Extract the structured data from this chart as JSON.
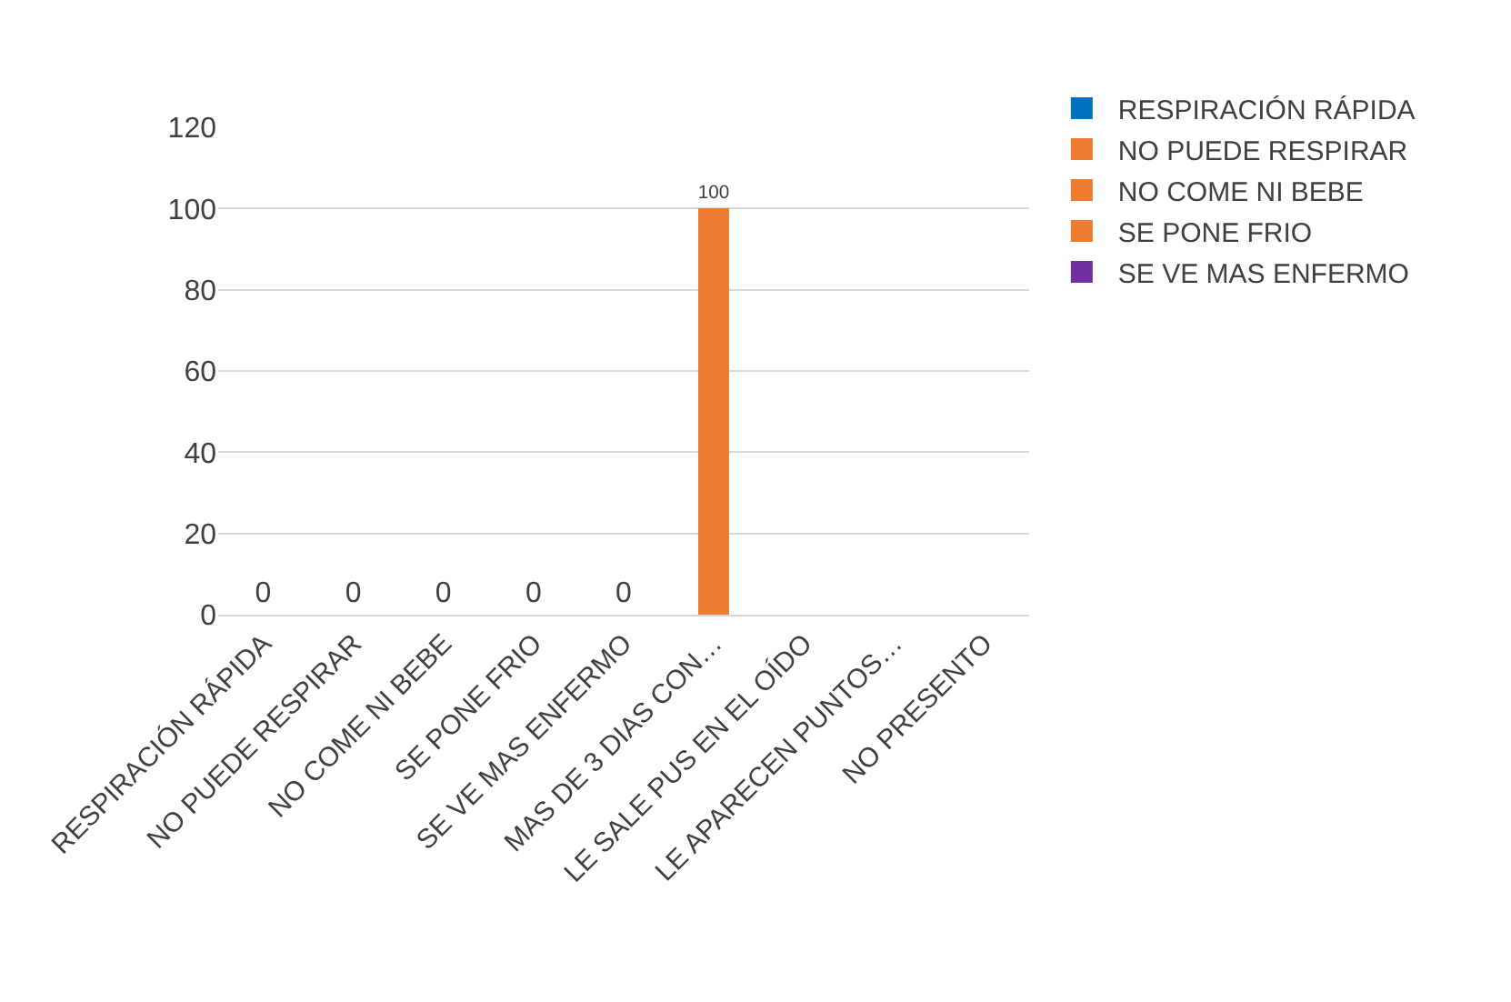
{
  "chart_data": {
    "type": "bar",
    "stacked": true,
    "categories": [
      "RESPIRACIÓN RÁPIDA",
      "NO PUEDE RESPIRAR",
      "NO COME NI BEBE",
      "SE PONE FRIO",
      "SE VE MAS ENFERMO",
      "MAS DE 3 DIAS CON…",
      "LE SALE PUS EN EL OÍDO",
      "LE APARECEN PUNTOS…",
      "NO PRESENTO"
    ],
    "series": [
      {
        "name": "RESPIRACIÓN RÁPIDA",
        "color": "#0070c0",
        "values": [
          0,
          null,
          null,
          null,
          null,
          null,
          null,
          null,
          null
        ]
      },
      {
        "name": "NO PUEDE RESPIRAR",
        "color": "#ed7d31",
        "values": [
          null,
          0,
          null,
          null,
          null,
          null,
          null,
          null,
          null
        ]
      },
      {
        "name": "NO COME NI BEBE",
        "color": "#ed7d31",
        "values": [
          null,
          null,
          0,
          null,
          null,
          null,
          null,
          null,
          null
        ]
      },
      {
        "name": "SE PONE FRIO",
        "color": "#ed7d31",
        "values": [
          null,
          null,
          null,
          0,
          null,
          null,
          null,
          null,
          null
        ]
      },
      {
        "name": "SE VE MAS ENFERMO",
        "color": "#7030a0",
        "values": [
          null,
          null,
          null,
          null,
          0,
          null,
          null,
          null,
          null
        ]
      },
      {
        "color": "#ed7d31",
        "values": [
          null,
          null,
          null,
          null,
          null,
          100,
          null,
          null,
          null
        ]
      }
    ],
    "ylim": [
      0,
      120
    ],
    "yticks": [
      0,
      20,
      40,
      60,
      80,
      100,
      120
    ],
    "grid": "y",
    "legend": "right",
    "data_labels": true
  }
}
